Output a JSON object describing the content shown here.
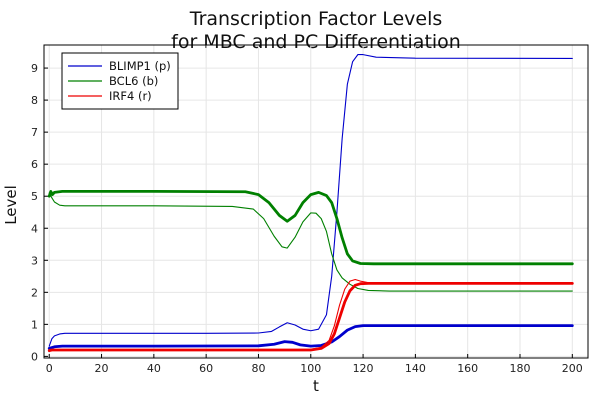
{
  "chart_data": {
    "type": "line",
    "title": [
      "Transcription Factor Levels",
      "for MBC and PC Differentiation"
    ],
    "xlabel": "t",
    "ylabel": "Level",
    "xlim": [
      -2,
      206
    ],
    "ylim": [
      -0.05,
      9.72
    ],
    "xticks": [
      0,
      20,
      40,
      60,
      80,
      100,
      120,
      140,
      160,
      180,
      200
    ],
    "yticks": [
      0,
      1,
      2,
      3,
      4,
      5,
      6,
      7,
      8,
      9
    ],
    "grid": true,
    "legend_position": "top-left",
    "legend": [
      {
        "label": "BLIMP1 (p)",
        "color": "#0000cc"
      },
      {
        "label": "BCL6 (b)",
        "color": "#008000"
      },
      {
        "label": "IRF4 (r)",
        "color": "#ee0000"
      }
    ],
    "series": [
      {
        "color": "#0000cc",
        "width": 1.1,
        "points": [
          [
            0,
            0.32
          ],
          [
            1,
            0.55
          ],
          [
            2,
            0.64
          ],
          [
            4,
            0.7
          ],
          [
            6,
            0.72
          ],
          [
            20,
            0.72
          ],
          [
            60,
            0.72
          ],
          [
            80,
            0.73
          ],
          [
            85,
            0.78
          ],
          [
            88,
            0.92
          ],
          [
            91,
            1.05
          ],
          [
            94,
            0.98
          ],
          [
            97,
            0.85
          ],
          [
            100,
            0.8
          ],
          [
            103,
            0.85
          ],
          [
            106,
            1.3
          ],
          [
            108,
            2.5
          ],
          [
            110,
            4.5
          ],
          [
            112,
            6.8
          ],
          [
            114,
            8.5
          ],
          [
            116,
            9.2
          ],
          [
            118,
            9.42
          ],
          [
            120,
            9.42
          ],
          [
            125,
            9.34
          ],
          [
            140,
            9.31
          ],
          [
            200,
            9.3
          ]
        ]
      },
      {
        "color": "#0000cc",
        "width": 2.8,
        "points": [
          [
            0,
            0.25
          ],
          [
            2,
            0.3
          ],
          [
            5,
            0.32
          ],
          [
            40,
            0.32
          ],
          [
            80,
            0.33
          ],
          [
            86,
            0.38
          ],
          [
            90,
            0.46
          ],
          [
            93,
            0.44
          ],
          [
            96,
            0.36
          ],
          [
            100,
            0.32
          ],
          [
            104,
            0.34
          ],
          [
            108,
            0.45
          ],
          [
            111,
            0.62
          ],
          [
            114,
            0.82
          ],
          [
            117,
            0.93
          ],
          [
            120,
            0.96
          ],
          [
            130,
            0.96
          ],
          [
            200,
            0.96
          ]
        ]
      },
      {
        "color": "#008000",
        "width": 1.1,
        "points": [
          [
            0,
            5.1
          ],
          [
            1,
            4.95
          ],
          [
            2,
            4.82
          ],
          [
            4,
            4.72
          ],
          [
            6,
            4.7
          ],
          [
            40,
            4.7
          ],
          [
            70,
            4.68
          ],
          [
            78,
            4.6
          ],
          [
            82,
            4.3
          ],
          [
            86,
            3.75
          ],
          [
            89,
            3.42
          ],
          [
            91,
            3.38
          ],
          [
            94,
            3.72
          ],
          [
            97,
            4.2
          ],
          [
            100,
            4.48
          ],
          [
            102,
            4.47
          ],
          [
            104,
            4.3
          ],
          [
            106,
            3.9
          ],
          [
            108,
            3.2
          ],
          [
            110,
            2.7
          ],
          [
            112,
            2.45
          ],
          [
            115,
            2.25
          ],
          [
            118,
            2.12
          ],
          [
            122,
            2.06
          ],
          [
            130,
            2.04
          ],
          [
            200,
            2.04
          ]
        ]
      },
      {
        "color": "#008000",
        "width": 2.8,
        "points": [
          [
            0,
            5.0
          ],
          [
            0.6,
            5.15
          ],
          [
            1.2,
            5.05
          ],
          [
            2,
            5.12
          ],
          [
            5,
            5.15
          ],
          [
            40,
            5.15
          ],
          [
            75,
            5.14
          ],
          [
            80,
            5.05
          ],
          [
            84,
            4.8
          ],
          [
            88,
            4.4
          ],
          [
            91,
            4.22
          ],
          [
            94,
            4.4
          ],
          [
            97,
            4.8
          ],
          [
            100,
            5.05
          ],
          [
            103,
            5.12
          ],
          [
            106,
            5.02
          ],
          [
            108,
            4.8
          ],
          [
            110,
            4.3
          ],
          [
            112,
            3.7
          ],
          [
            114,
            3.2
          ],
          [
            116,
            2.98
          ],
          [
            119,
            2.9
          ],
          [
            124,
            2.89
          ],
          [
            200,
            2.89
          ]
        ]
      },
      {
        "color": "#ee0000",
        "width": 1.1,
        "points": [
          [
            0,
            0.18
          ],
          [
            1,
            0.2
          ],
          [
            5,
            0.2
          ],
          [
            80,
            0.2
          ],
          [
            100,
            0.22
          ],
          [
            104,
            0.28
          ],
          [
            107,
            0.5
          ],
          [
            109,
            0.95
          ],
          [
            111,
            1.6
          ],
          [
            113,
            2.1
          ],
          [
            115,
            2.35
          ],
          [
            117,
            2.4
          ],
          [
            119,
            2.35
          ],
          [
            122,
            2.3
          ],
          [
            130,
            2.27
          ],
          [
            200,
            2.27
          ]
        ]
      },
      {
        "color": "#ee0000",
        "width": 2.8,
        "points": [
          [
            0,
            0.18
          ],
          [
            1,
            0.2
          ],
          [
            5,
            0.2
          ],
          [
            80,
            0.2
          ],
          [
            100,
            0.2
          ],
          [
            104,
            0.25
          ],
          [
            107,
            0.4
          ],
          [
            109,
            0.7
          ],
          [
            111,
            1.2
          ],
          [
            113,
            1.7
          ],
          [
            115,
            2.05
          ],
          [
            117,
            2.22
          ],
          [
            119,
            2.27
          ],
          [
            122,
            2.28
          ],
          [
            200,
            2.28
          ]
        ]
      }
    ]
  }
}
